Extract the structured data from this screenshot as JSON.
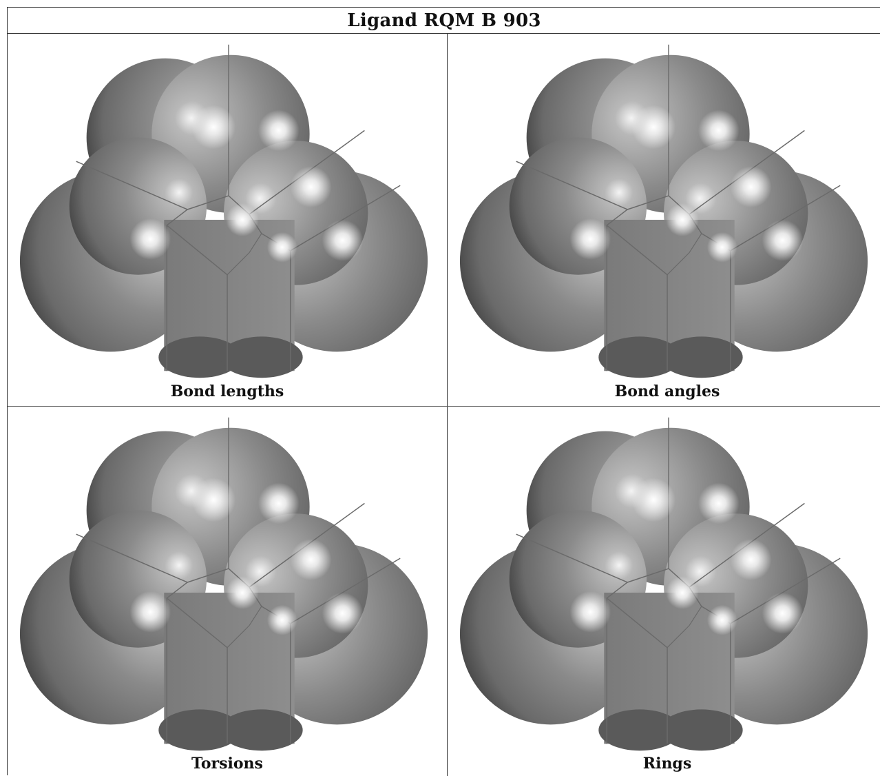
{
  "title": "Ligand RQM B 903",
  "panels": [
    {
      "caption": "Bond lengths"
    },
    {
      "caption": "Bond angles"
    },
    {
      "caption": "Torsions"
    },
    {
      "caption": "Rings"
    }
  ]
}
